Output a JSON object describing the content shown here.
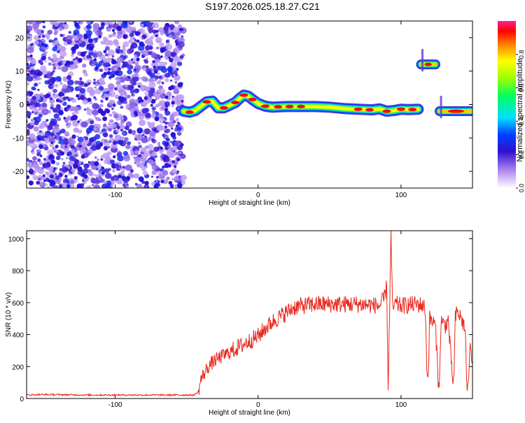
{
  "figure": {
    "title": "S197.2026.025.18.27.C21"
  },
  "chart_data": [
    {
      "type": "heatmap",
      "title": "S197.2026.025.18.27.C21",
      "xlabel": "Height of straight line (km)",
      "ylabel": "Frequency (Hz)",
      "xlim": [
        -162,
        150
      ],
      "ylim": [
        -25,
        25
      ],
      "x_ticks": [
        -100,
        0,
        100
      ],
      "x_tick_labels": [
        "-100",
        "0",
        "100"
      ],
      "y_ticks": [
        -20,
        -10,
        0,
        10,
        20
      ],
      "y_tick_labels": [
        "-20",
        "-10",
        "0",
        "10",
        "20"
      ],
      "colorbar": {
        "label": "Normalized spectral amplitude",
        "range": [
          0,
          1
        ],
        "ticks": [
          0.0,
          0.2,
          0.4,
          0.6,
          0.8
        ],
        "tick_labels": [
          "0.0",
          "0.2",
          "0.4",
          "0.6",
          "0.8"
        ]
      },
      "noise_region": {
        "x_range": [
          -162,
          -52
        ],
        "description_values": "scattered low amplitude 0.1-0.4"
      },
      "ridge": [
        [
          -52,
          -2
        ],
        [
          -48,
          -2.3
        ],
        [
          -44,
          -1.8
        ],
        [
          -40,
          -0.5
        ],
        [
          -36,
          0.8
        ],
        [
          -32,
          1.0
        ],
        [
          -28,
          -1.0
        ],
        [
          -24,
          -1.0
        ],
        [
          -20,
          -0.2
        ],
        [
          -16,
          0.6
        ],
        [
          -13,
          1.8
        ],
        [
          -10,
          2.8
        ],
        [
          -7,
          2.5
        ],
        [
          -4,
          1.5
        ],
        [
          0,
          0.3
        ],
        [
          5,
          -0.5
        ],
        [
          10,
          -0.8
        ],
        [
          15,
          -0.7
        ],
        [
          20,
          -0.6
        ],
        [
          30,
          -0.6
        ],
        [
          40,
          -0.6
        ],
        [
          50,
          -0.8
        ],
        [
          60,
          -1.2
        ],
        [
          70,
          -1.4
        ],
        [
          80,
          -1.6
        ],
        [
          85,
          -1.3
        ],
        [
          90,
          -2.0
        ],
        [
          95,
          -1.8
        ],
        [
          100,
          -1.4
        ],
        [
          105,
          -1.5
        ],
        [
          112,
          -1.4
        ]
      ],
      "secondary_features": [
        {
          "x_range": [
            114,
            124
          ],
          "frequency": 12,
          "amplitude": 0.85
        },
        {
          "x_range": [
            127,
            150
          ],
          "frequency": -2,
          "amplitude": 0.8
        }
      ]
    },
    {
      "type": "line",
      "xlabel": "Height of straight line (km)",
      "ylabel": "SNR (10 * v/v)",
      "xlim": [
        -162,
        150
      ],
      "ylim": [
        0,
        1050
      ],
      "x_ticks": [
        -100,
        0,
        100
      ],
      "x_tick_labels": [
        "-100",
        "0",
        "100"
      ],
      "y_ticks": [
        0,
        200,
        400,
        600,
        800,
        1000
      ],
      "y_tick_labels": [
        "0",
        "200",
        "400",
        "600",
        "800",
        "1000"
      ],
      "series": [
        {
          "name": "SNR",
          "color": "#e8281e",
          "x": [
            -162,
            -150,
            -120,
            -90,
            -60,
            -45,
            -42,
            -40,
            -35,
            -30,
            -20,
            -10,
            0,
            5,
            10,
            15,
            20,
            25,
            30,
            40,
            50,
            60,
            70,
            80,
            85,
            88,
            90,
            91,
            92,
            93,
            94,
            96,
            100,
            110,
            115,
            117,
            118,
            119,
            120,
            122,
            124,
            125,
            126,
            127,
            128,
            129,
            131,
            133,
            136,
            137,
            138,
            139,
            141,
            143,
            145,
            146,
            147,
            148,
            150
          ],
          "values": [
            22,
            25,
            22,
            22,
            22,
            22,
            40,
            120,
            200,
            240,
            290,
            340,
            390,
            440,
            480,
            510,
            540,
            570,
            580,
            590,
            590,
            590,
            590,
            585,
            580,
            620,
            700,
            50,
            560,
            1030,
            560,
            590,
            580,
            590,
            585,
            560,
            200,
            130,
            500,
            480,
            460,
            300,
            110,
            110,
            500,
            470,
            460,
            490,
            120,
            120,
            500,
            540,
            520,
            480,
            430,
            70,
            60,
            320,
            230
          ]
        }
      ]
    }
  ]
}
